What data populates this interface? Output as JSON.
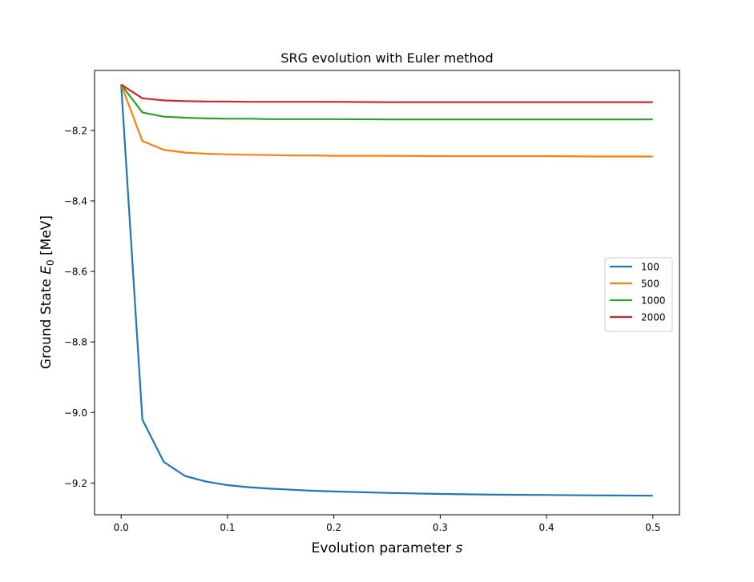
{
  "chart_data": {
    "type": "line",
    "title": "SRG evolution with Euler method",
    "xlabel_text": "Evolution parameter ",
    "xlabel_var": "s",
    "ylabel_text": "Ground State ",
    "ylabel_var": "E",
    "ylabel_sub": "0",
    "ylabel_unit": " [MeV]",
    "xlim": [
      -0.025,
      0.525
    ],
    "ylim": [
      -9.29,
      -8.03
    ],
    "xticks": [
      0.0,
      0.1,
      0.2,
      0.3,
      0.4,
      0.5
    ],
    "xtick_labels": [
      "0.0",
      "0.1",
      "0.2",
      "0.3",
      "0.4",
      "0.5"
    ],
    "yticks": [
      -8.2,
      -8.4,
      -8.6,
      -8.8,
      -9.0,
      -9.2
    ],
    "ytick_labels": [
      "−8.2",
      "−8.4",
      "−8.6",
      "−8.8",
      "−9.0",
      "−9.2"
    ],
    "grid": false,
    "legend_position": "center-right",
    "x": [
      0.0,
      0.02,
      0.04,
      0.06,
      0.08,
      0.1,
      0.12,
      0.14,
      0.16,
      0.18,
      0.2,
      0.25,
      0.3,
      0.35,
      0.4,
      0.45,
      0.5
    ],
    "series": [
      {
        "name": "100",
        "color": "#1f77b4",
        "values": [
          -8.07,
          -9.02,
          -9.14,
          -9.18,
          -9.196,
          -9.206,
          -9.212,
          -9.216,
          -9.219,
          -9.222,
          -9.224,
          -9.228,
          -9.231,
          -9.233,
          -9.234,
          -9.235,
          -9.236
        ]
      },
      {
        "name": "500",
        "color": "#ff7f0e",
        "values": [
          -8.07,
          -8.23,
          -8.255,
          -8.263,
          -8.266,
          -8.268,
          -8.269,
          -8.27,
          -8.271,
          -8.271,
          -8.272,
          -8.272,
          -8.273,
          -8.273,
          -8.273,
          -8.274,
          -8.274
        ]
      },
      {
        "name": "1000",
        "color": "#2ca02c",
        "values": [
          -8.07,
          -8.149,
          -8.161,
          -8.164,
          -8.166,
          -8.167,
          -8.167,
          -8.168,
          -8.168,
          -8.168,
          -8.168,
          -8.169,
          -8.169,
          -8.169,
          -8.169,
          -8.169,
          -8.169
        ]
      },
      {
        "name": "2000",
        "color": "#d62728",
        "values": [
          -8.07,
          -8.109,
          -8.115,
          -8.117,
          -8.118,
          -8.118,
          -8.119,
          -8.119,
          -8.119,
          -8.119,
          -8.119,
          -8.12,
          -8.12,
          -8.12,
          -8.12,
          -8.12,
          -8.12
        ]
      }
    ]
  }
}
